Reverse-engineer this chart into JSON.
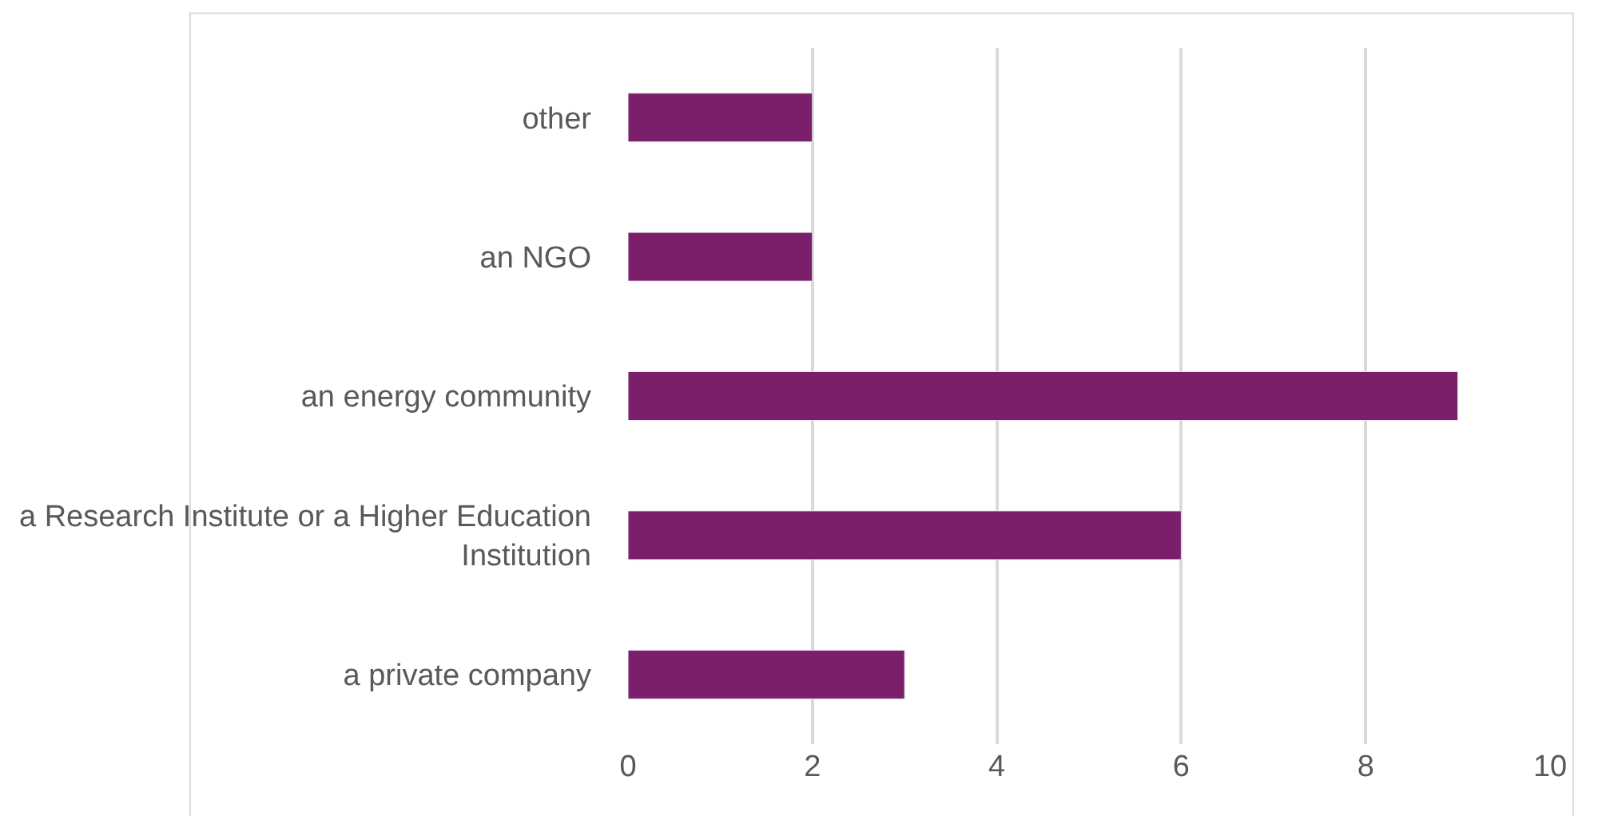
{
  "chart_data": {
    "type": "bar",
    "orientation": "horizontal",
    "categories": [
      "other",
      "an NGO",
      "an energy community",
      "a Research Institute or a Higher Education Institution",
      "a private company"
    ],
    "values": [
      2,
      2,
      9,
      6,
      3
    ],
    "color": "#7b1f6a",
    "xlim": [
      0,
      10
    ],
    "xticks": [
      0,
      2,
      4,
      6,
      8,
      10
    ],
    "grid": "x",
    "legend": false
  }
}
